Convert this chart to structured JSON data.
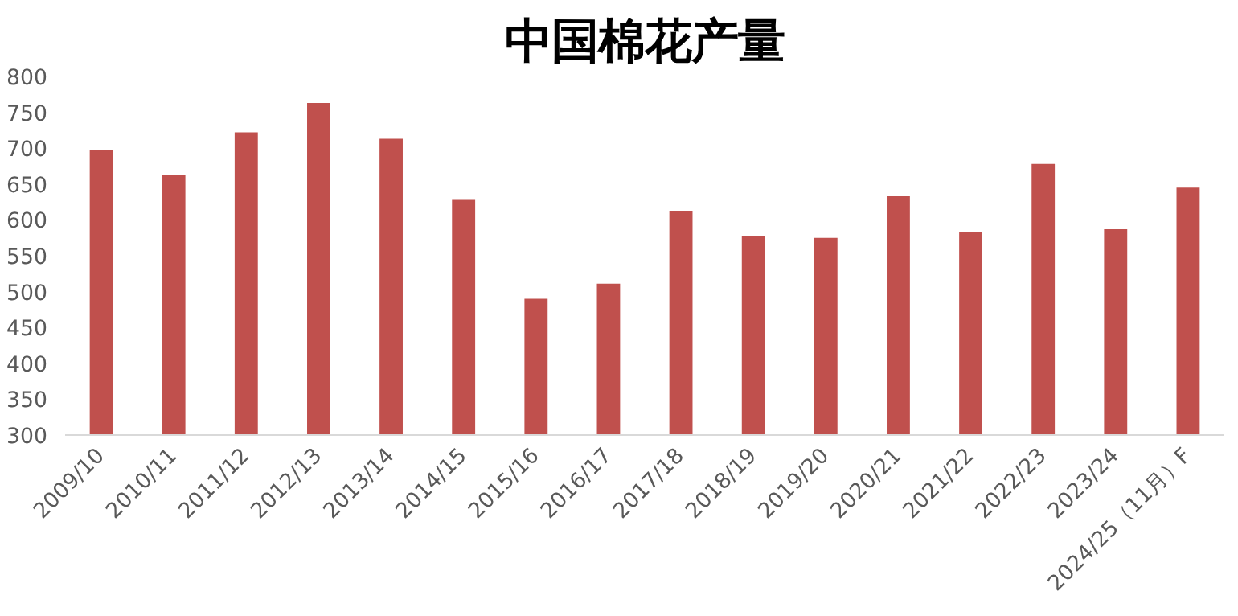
{
  "chart_data": {
    "type": "bar",
    "title": "中国棉花产量",
    "categories": [
      "2009/10",
      "2010/11",
      "2011/12",
      "2012/13",
      "2013/14",
      "2014/15",
      "2015/16",
      "2016/17",
      "2017/18",
      "2018/19",
      "2019/20",
      "2020/21",
      "2021/22",
      "2022/23",
      "2023/24",
      "2024/25（11月）F"
    ],
    "values": [
      697,
      663,
      722,
      763,
      713,
      628,
      490,
      511,
      612,
      577,
      575,
      633,
      583,
      678,
      587,
      645
    ],
    "color": "#c0504d",
    "ylim": [
      300,
      800
    ],
    "yticks": [
      300,
      350,
      400,
      450,
      500,
      550,
      600,
      650,
      700,
      750,
      800
    ],
    "grid": false
  }
}
